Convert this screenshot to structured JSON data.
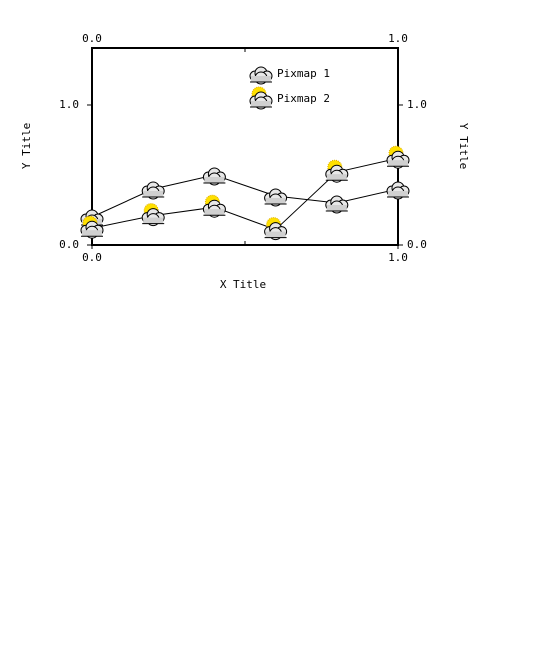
{
  "chart_data": {
    "type": "line",
    "x_label": "X Title",
    "y_label": "Y Title",
    "xlim": [
      0,
      1
    ],
    "ylim": [
      0,
      1.407
    ],
    "xticks": [
      {
        "value": 0,
        "label": "0.0"
      },
      {
        "value": 1,
        "label": "1.0"
      }
    ],
    "yticks": [
      {
        "value": 0,
        "label": "0.0"
      },
      {
        "value": 1,
        "label": "1.0"
      }
    ],
    "legend": "top-right",
    "series": [
      {
        "name": "Pixmap 1",
        "color": "#000000",
        "marker": "cloud",
        "x": [
          0,
          0.2,
          0.4,
          0.6,
          0.8,
          1.0
        ],
        "values": [
          0.2,
          0.4,
          0.5,
          0.35,
          0.3,
          0.4
        ]
      },
      {
        "name": "Pixmap 2",
        "color": "#000000",
        "marker": "sun-cloud",
        "x": [
          0,
          0.2,
          0.4,
          0.6,
          0.8,
          1.0
        ],
        "values": [
          0.12,
          0.21,
          0.27,
          0.11,
          0.52,
          0.62
        ]
      }
    ]
  }
}
